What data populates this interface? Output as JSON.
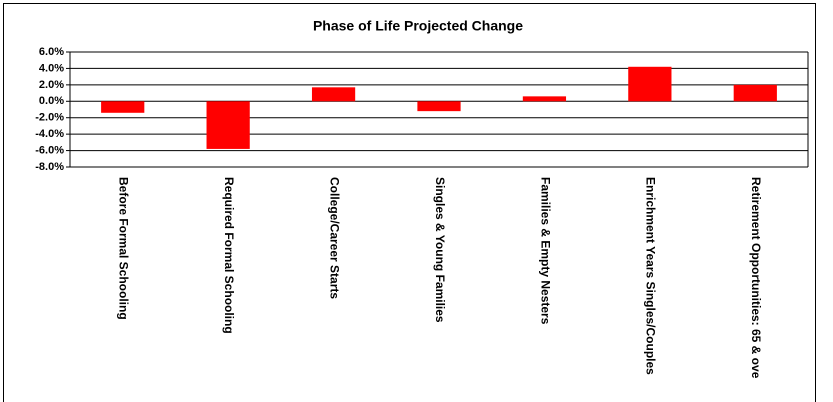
{
  "chart_data": {
    "type": "bar",
    "title": "Phase of Life Projected Change",
    "categories": [
      "Before Formal Schooling",
      "Required Formal Schooling",
      "College/Career Starts",
      "Singles & Young Families",
      "Families & Empty Nesters",
      "Enrichment Years Singles/Couples",
      "Retirement Opportunities: 65 & ove"
    ],
    "values": [
      -1.4,
      -5.8,
      1.7,
      -1.2,
      0.6,
      4.2,
      2.0
    ],
    "color": "#ff0000",
    "ylim": [
      -8,
      6
    ],
    "yticks": [
      {
        "value": -8,
        "label": "-8.0%"
      },
      {
        "value": -6,
        "label": "-6.0%"
      },
      {
        "value": -4,
        "label": "-4.0%"
      },
      {
        "value": -2,
        "label": "-2.0%"
      },
      {
        "value": 0,
        "label": "0.0%"
      },
      {
        "value": 2,
        "label": "2.0%"
      },
      {
        "value": 4,
        "label": "4.0%"
      },
      {
        "value": 6,
        "label": "6.0%"
      }
    ],
    "grid": true
  }
}
